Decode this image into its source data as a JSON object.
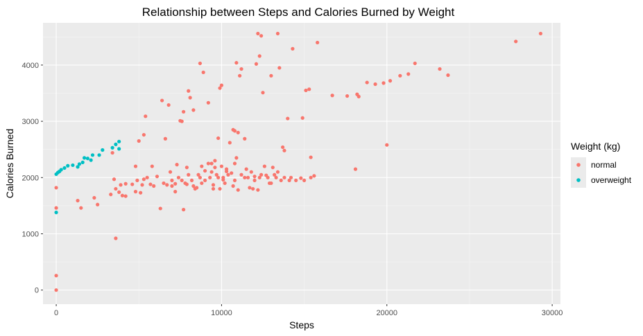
{
  "chart_data": {
    "type": "scatter",
    "title": "Relationship between Steps and Calories Burned by Weight",
    "xlabel": "Steps",
    "ylabel": "Calories Burned",
    "xlim": [
      -800,
      30500
    ],
    "ylim": [
      -250,
      4750
    ],
    "x_ticks": [
      0,
      10000,
      20000,
      30000
    ],
    "y_ticks": [
      0,
      1000,
      2000,
      3000,
      4000
    ],
    "x_tick_labels": [
      "0",
      "10000",
      "20000",
      "30000"
    ],
    "y_tick_labels": [
      "0",
      "1000",
      "2000",
      "3000",
      "4000"
    ],
    "grid": true,
    "legend": {
      "title": "Weight (kg)",
      "placement": "right"
    },
    "series": [
      {
        "name": "normal",
        "color": "#F8766D",
        "points": [
          [
            0,
            0
          ],
          [
            0,
            257
          ],
          [
            0,
            1460
          ],
          [
            0,
            1820
          ],
          [
            1300,
            1590
          ],
          [
            1500,
            1460
          ],
          [
            2300,
            1640
          ],
          [
            2500,
            1520
          ],
          [
            3300,
            1700
          ],
          [
            3400,
            2440
          ],
          [
            3500,
            1970
          ],
          [
            3600,
            920
          ],
          [
            3600,
            1800
          ],
          [
            3800,
            1740
          ],
          [
            3900,
            1870
          ],
          [
            4000,
            1680
          ],
          [
            4200,
            1670
          ],
          [
            4200,
            1890
          ],
          [
            4600,
            1880
          ],
          [
            4800,
            2200
          ],
          [
            4800,
            1750
          ],
          [
            4900,
            1950
          ],
          [
            5000,
            2650
          ],
          [
            5100,
            1730
          ],
          [
            5200,
            1870
          ],
          [
            5300,
            1970
          ],
          [
            5300,
            2760
          ],
          [
            5400,
            3090
          ],
          [
            5500,
            2000
          ],
          [
            5700,
            1880
          ],
          [
            5800,
            2200
          ],
          [
            5900,
            1850
          ],
          [
            6100,
            2020
          ],
          [
            6300,
            1450
          ],
          [
            6400,
            3370
          ],
          [
            6600,
            2690
          ],
          [
            6700,
            1870
          ],
          [
            6800,
            3290
          ],
          [
            7000,
            1950
          ],
          [
            7200,
            1890
          ],
          [
            7300,
            2230
          ],
          [
            7500,
            3010
          ],
          [
            7600,
            3000
          ],
          [
            7700,
            3170
          ],
          [
            7700,
            1430
          ],
          [
            7900,
            2180
          ],
          [
            8000,
            3540
          ],
          [
            8100,
            3420
          ],
          [
            8300,
            3200
          ],
          [
            8500,
            1820
          ],
          [
            8700,
            4030
          ],
          [
            8800,
            1900
          ],
          [
            8900,
            3870
          ],
          [
            9000,
            2120
          ],
          [
            9200,
            3330
          ],
          [
            9300,
            2000
          ],
          [
            9400,
            2250
          ],
          [
            9500,
            1870
          ],
          [
            9600,
            2180
          ],
          [
            9800,
            2700
          ],
          [
            9900,
            3590
          ],
          [
            10000,
            3640
          ],
          [
            10100,
            1960
          ],
          [
            10300,
            2110
          ],
          [
            10500,
            2620
          ],
          [
            10700,
            2850
          ],
          [
            10800,
            2830
          ],
          [
            10900,
            4040
          ],
          [
            11000,
            2800
          ],
          [
            11100,
            3810
          ],
          [
            11200,
            3930
          ],
          [
            11400,
            2690
          ],
          [
            11700,
            1820
          ],
          [
            12000,
            2020
          ],
          [
            12100,
            4020
          ],
          [
            12200,
            4560
          ],
          [
            12300,
            4160
          ],
          [
            12400,
            4520
          ],
          [
            12500,
            3510
          ],
          [
            12700,
            2040
          ],
          [
            12900,
            1900
          ],
          [
            13000,
            3810
          ],
          [
            13100,
            2180
          ],
          [
            13300,
            2000
          ],
          [
            13400,
            4560
          ],
          [
            13500,
            3950
          ],
          [
            13700,
            2540
          ],
          [
            13800,
            2480
          ],
          [
            14000,
            3050
          ],
          [
            14100,
            1950
          ],
          [
            14300,
            4290
          ],
          [
            14500,
            1950
          ],
          [
            14800,
            1990
          ],
          [
            14900,
            3060
          ],
          [
            15100,
            3550
          ],
          [
            15300,
            3570
          ],
          [
            15400,
            2000
          ],
          [
            15400,
            2360
          ],
          [
            15600,
            2030
          ],
          [
            15800,
            4400
          ],
          [
            16700,
            3460
          ],
          [
            17600,
            3450
          ],
          [
            18100,
            2150
          ],
          [
            18200,
            3480
          ],
          [
            18300,
            3440
          ],
          [
            18800,
            3690
          ],
          [
            19300,
            3660
          ],
          [
            19800,
            3680
          ],
          [
            20000,
            2580
          ],
          [
            20200,
            3720
          ],
          [
            20800,
            3810
          ],
          [
            21300,
            3840
          ],
          [
            21700,
            4030
          ],
          [
            23200,
            3930
          ],
          [
            23700,
            3820
          ],
          [
            27800,
            4420
          ],
          [
            29300,
            4560
          ],
          [
            7000,
            1850
          ],
          [
            7400,
            2000
          ],
          [
            7800,
            1900
          ],
          [
            8200,
            1950
          ],
          [
            8600,
            2050
          ],
          [
            9000,
            1950
          ],
          [
            9400,
            2100
          ],
          [
            9700,
            2050
          ],
          [
            10100,
            2000
          ],
          [
            10400,
            2050
          ],
          [
            10800,
            1950
          ],
          [
            11200,
            2050
          ],
          [
            11600,
            2000
          ],
          [
            12000,
            1950
          ],
          [
            12400,
            2050
          ],
          [
            12800,
            2000
          ],
          [
            13200,
            2050
          ],
          [
            13600,
            1950
          ],
          [
            8000,
            2050
          ],
          [
            9200,
            2250
          ],
          [
            10000,
            2200
          ],
          [
            10800,
            2250
          ],
          [
            11500,
            2150
          ],
          [
            8400,
            1800
          ],
          [
            9900,
            1800
          ],
          [
            10700,
            1850
          ],
          [
            11900,
            1800
          ],
          [
            6500,
            1900
          ],
          [
            6900,
            2100
          ],
          [
            7600,
            1950
          ],
          [
            8800,
            2200
          ],
          [
            9600,
            2300
          ],
          [
            10300,
            2150
          ],
          [
            10900,
            2350
          ],
          [
            11800,
            2100
          ],
          [
            12600,
            2200
          ],
          [
            13400,
            2100
          ],
          [
            14200,
            2000
          ],
          [
            15000,
            1950
          ],
          [
            7200,
            1750
          ],
          [
            8300,
            1850
          ],
          [
            9500,
            1800
          ],
          [
            10200,
            1900
          ],
          [
            11000,
            1780
          ],
          [
            12200,
            1780
          ],
          [
            13000,
            1900
          ],
          [
            7900,
            1880
          ],
          [
            8700,
            2000
          ],
          [
            9800,
            2000
          ],
          [
            10600,
            2080
          ],
          [
            11400,
            2000
          ],
          [
            12300,
            2000
          ],
          [
            13800,
            2000
          ]
        ]
      },
      {
        "name": "overweight",
        "color": "#00BFC4",
        "points": [
          [
            0,
            1380
          ],
          [
            0,
            2060
          ],
          [
            100,
            2090
          ],
          [
            200,
            2110
          ],
          [
            300,
            2140
          ],
          [
            500,
            2170
          ],
          [
            700,
            2210
          ],
          [
            1000,
            2220
          ],
          [
            1300,
            2190
          ],
          [
            1400,
            2240
          ],
          [
            1600,
            2270
          ],
          [
            1700,
            2350
          ],
          [
            1900,
            2340
          ],
          [
            2100,
            2310
          ],
          [
            2200,
            2400
          ],
          [
            2600,
            2400
          ],
          [
            2800,
            2490
          ],
          [
            3400,
            2530
          ],
          [
            3600,
            2590
          ],
          [
            3800,
            2640
          ],
          [
            3800,
            2510
          ]
        ]
      }
    ]
  }
}
